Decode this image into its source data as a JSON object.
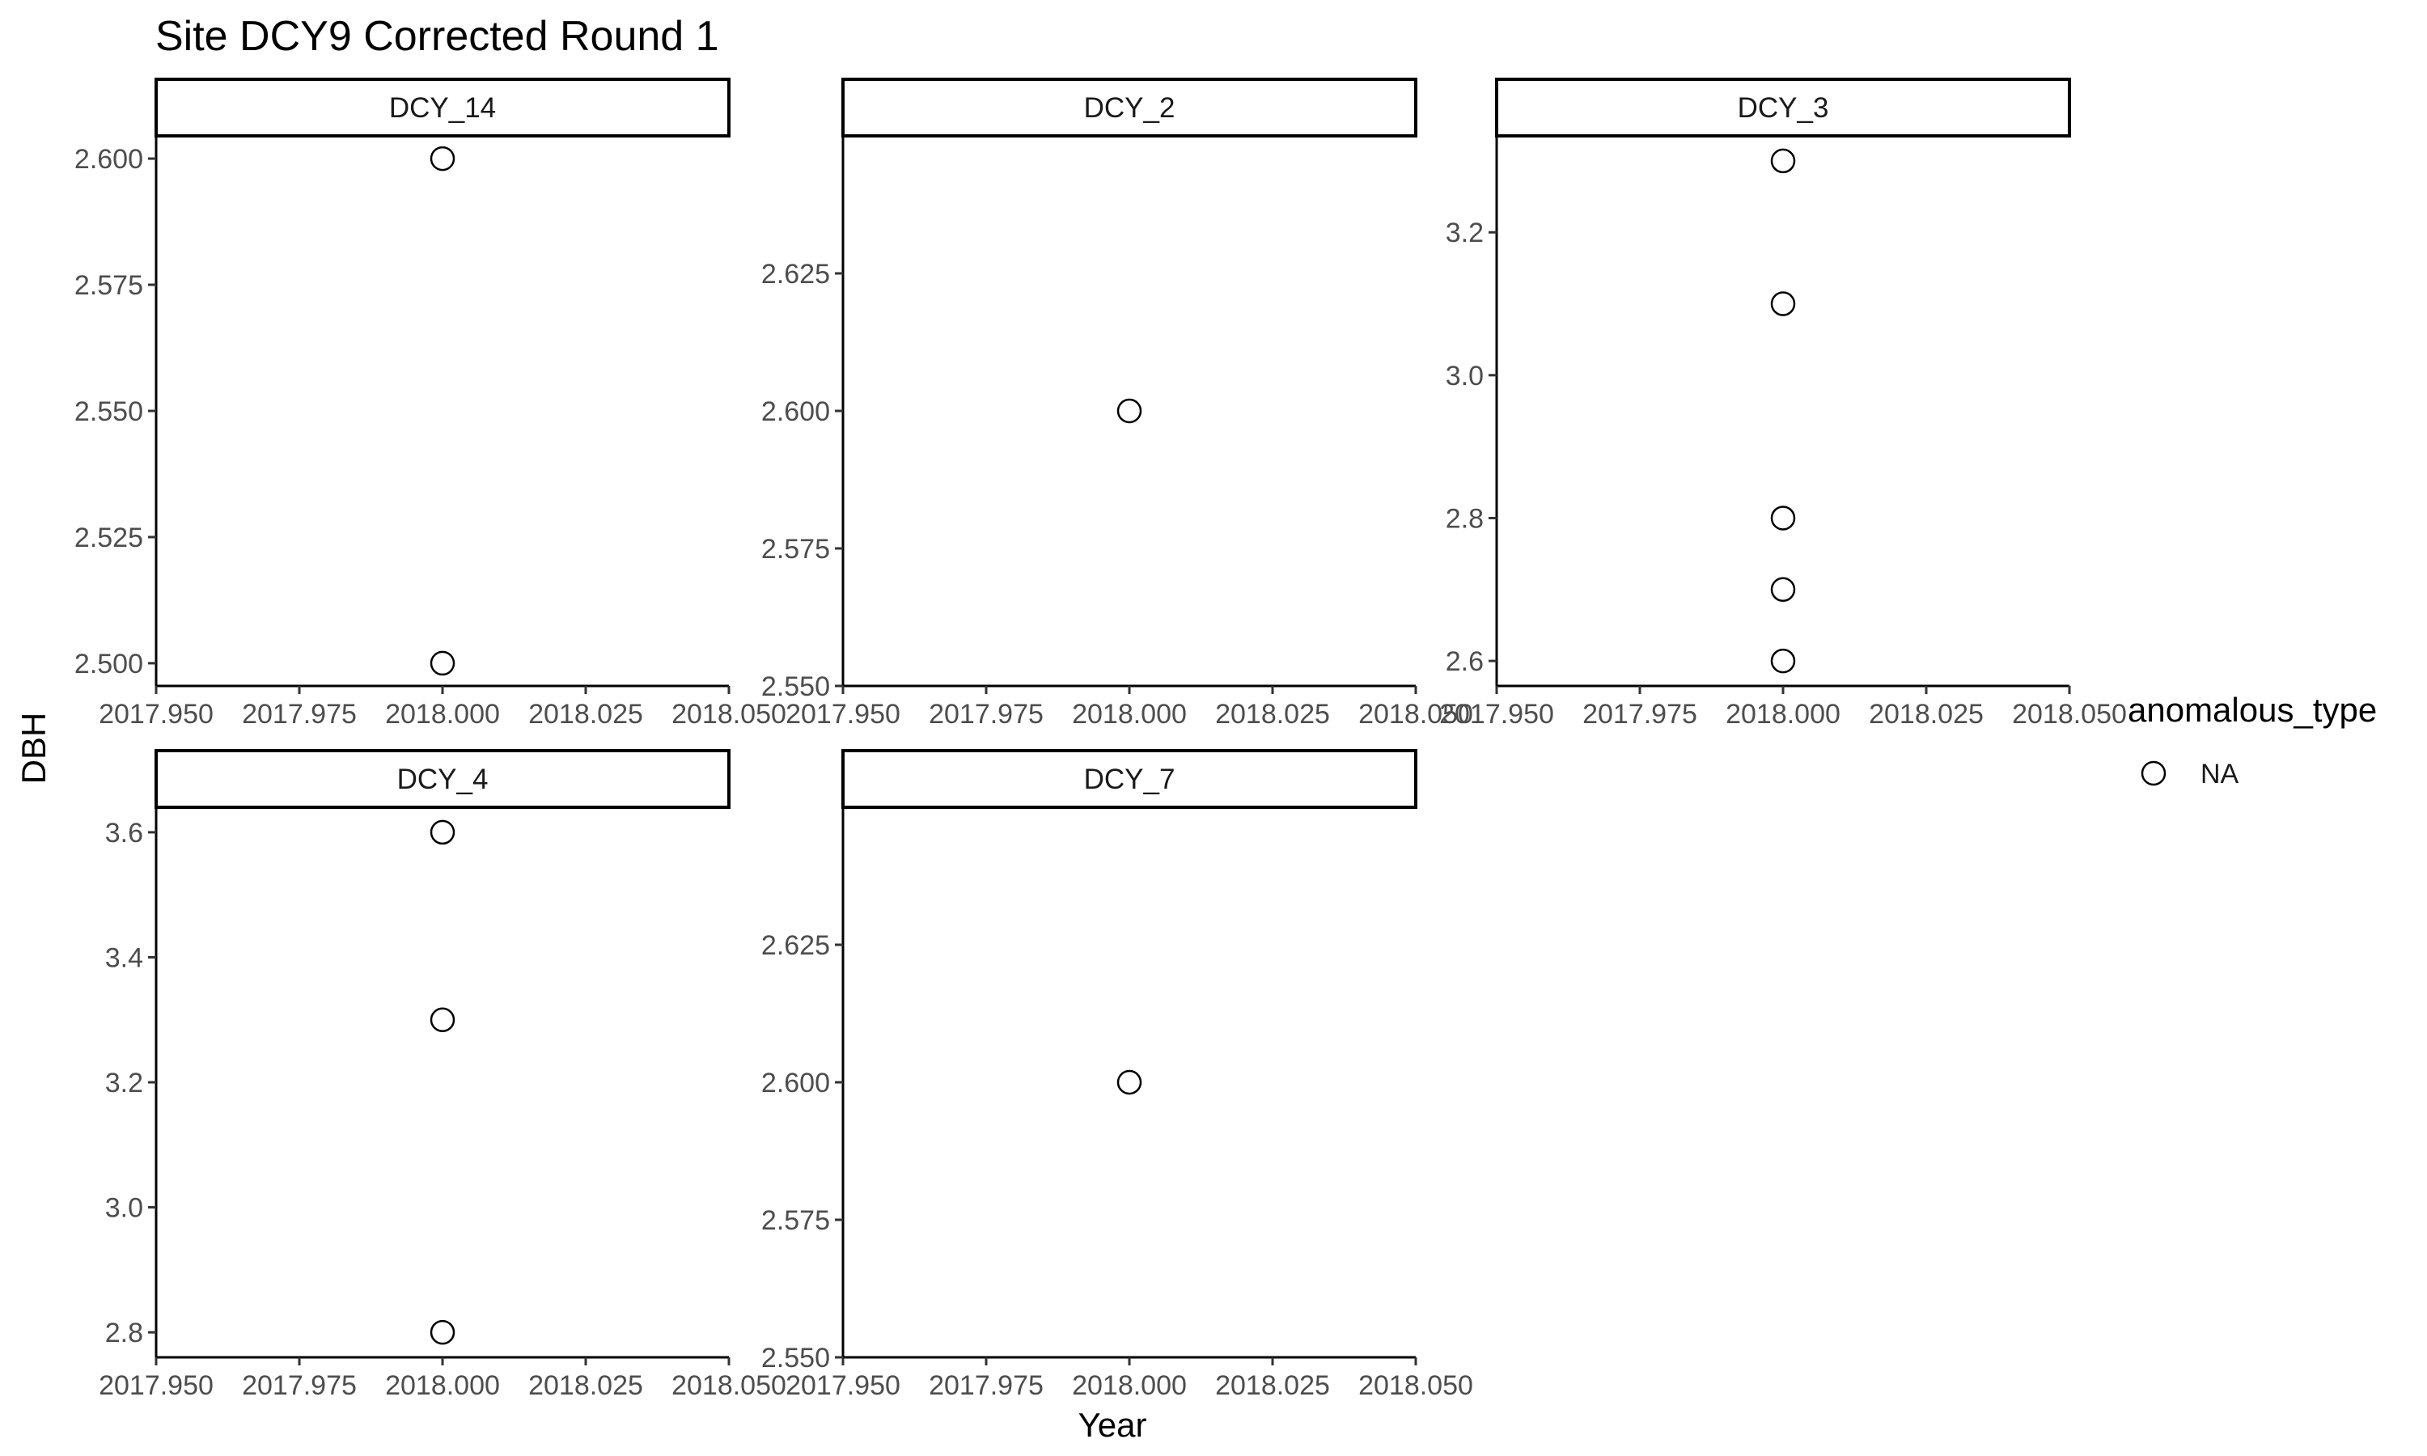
{
  "chart_data": {
    "type": "scatter",
    "title": "Site DCY9 Corrected Round 1",
    "xlabel": "Year",
    "ylabel": "DBH",
    "grid": false,
    "legend": {
      "title": "anomalous_type",
      "placement": "right",
      "entries": [
        {
          "label": "NA",
          "shape": "open-circle"
        }
      ]
    },
    "panels": [
      {
        "name": "DCY_14",
        "xlim": [
          2017.95,
          2018.05
        ],
        "ylim": [
          2.4955,
          2.6045
        ],
        "x_ticks": [
          "2017.950",
          "2017.975",
          "2018.000",
          "2018.025",
          "2018.050"
        ],
        "y_ticks": [
          "2.500",
          "2.525",
          "2.550",
          "2.575",
          "2.600"
        ],
        "points": [
          {
            "x": 2018.0,
            "y": 2.6
          },
          {
            "x": 2018.0,
            "y": 2.5
          }
        ]
      },
      {
        "name": "DCY_2",
        "xlim": [
          2017.95,
          2018.05
        ],
        "ylim": [
          2.55,
          2.65
        ],
        "x_ticks": [
          "2017.950",
          "2017.975",
          "2018.000",
          "2018.025",
          "2018.050"
        ],
        "y_ticks": [
          "2.550",
          "2.575",
          "2.600",
          "2.625"
        ],
        "points": [
          {
            "x": 2018.0,
            "y": 2.6
          }
        ]
      },
      {
        "name": "DCY_3",
        "xlim": [
          2017.95,
          2018.05
        ],
        "ylim": [
          2.565,
          3.335
        ],
        "x_ticks": [
          "2017.950",
          "2017.975",
          "2018.000",
          "2018.025",
          "2018.050"
        ],
        "y_ticks": [
          "2.6",
          "2.8",
          "3.0",
          "3.2"
        ],
        "points": [
          {
            "x": 2018.0,
            "y": 3.3
          },
          {
            "x": 2018.0,
            "y": 3.1
          },
          {
            "x": 2018.0,
            "y": 2.8
          },
          {
            "x": 2018.0,
            "y": 2.7
          },
          {
            "x": 2018.0,
            "y": 2.6
          }
        ]
      },
      {
        "name": "DCY_4",
        "xlim": [
          2017.95,
          2018.05
        ],
        "ylim": [
          2.76,
          3.64
        ],
        "x_ticks": [
          "2017.950",
          "2017.975",
          "2018.000",
          "2018.025",
          "2018.050"
        ],
        "y_ticks": [
          "2.8",
          "3.0",
          "3.2",
          "3.4",
          "3.6"
        ],
        "points": [
          {
            "x": 2018.0,
            "y": 3.6
          },
          {
            "x": 2018.0,
            "y": 3.3
          },
          {
            "x": 2018.0,
            "y": 2.8
          }
        ]
      },
      {
        "name": "DCY_7",
        "xlim": [
          2017.95,
          2018.05
        ],
        "ylim": [
          2.55,
          2.65
        ],
        "x_ticks": [
          "2017.950",
          "2017.975",
          "2018.000",
          "2018.025",
          "2018.050"
        ],
        "y_ticks": [
          "2.550",
          "2.575",
          "2.600",
          "2.625"
        ],
        "points": [
          {
            "x": 2018.0,
            "y": 2.6
          }
        ]
      }
    ]
  }
}
